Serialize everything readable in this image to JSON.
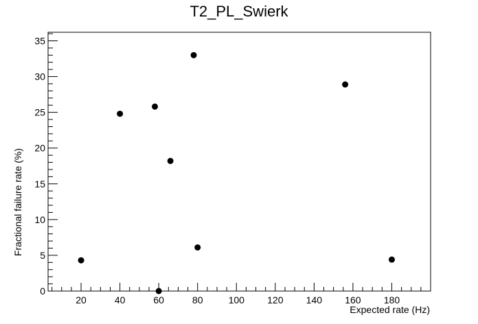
{
  "chart_data": {
    "type": "scatter",
    "title": "T2_PL_Swierk",
    "xlabel": "Expected rate (Hz)",
    "ylabel": "Fractional failure rate (%)",
    "xlim": [
      3,
      200
    ],
    "ylim": [
      0,
      36.2
    ],
    "x_ticks": [
      20,
      40,
      60,
      80,
      100,
      120,
      140,
      160,
      180
    ],
    "y_ticks": [
      0,
      5,
      10,
      15,
      20,
      25,
      30,
      35
    ],
    "grid": false,
    "legend": "none",
    "marker_color": "#000000",
    "points": [
      {
        "x": 20,
        "y": 4.3
      },
      {
        "x": 40,
        "y": 24.8
      },
      {
        "x": 58,
        "y": 25.8
      },
      {
        "x": 60,
        "y": 0
      },
      {
        "x": 66,
        "y": 18.2
      },
      {
        "x": 78,
        "y": 33.0
      },
      {
        "x": 80,
        "y": 6.1
      },
      {
        "x": 156,
        "y": 28.9
      },
      {
        "x": 180,
        "y": 4.4
      }
    ]
  }
}
